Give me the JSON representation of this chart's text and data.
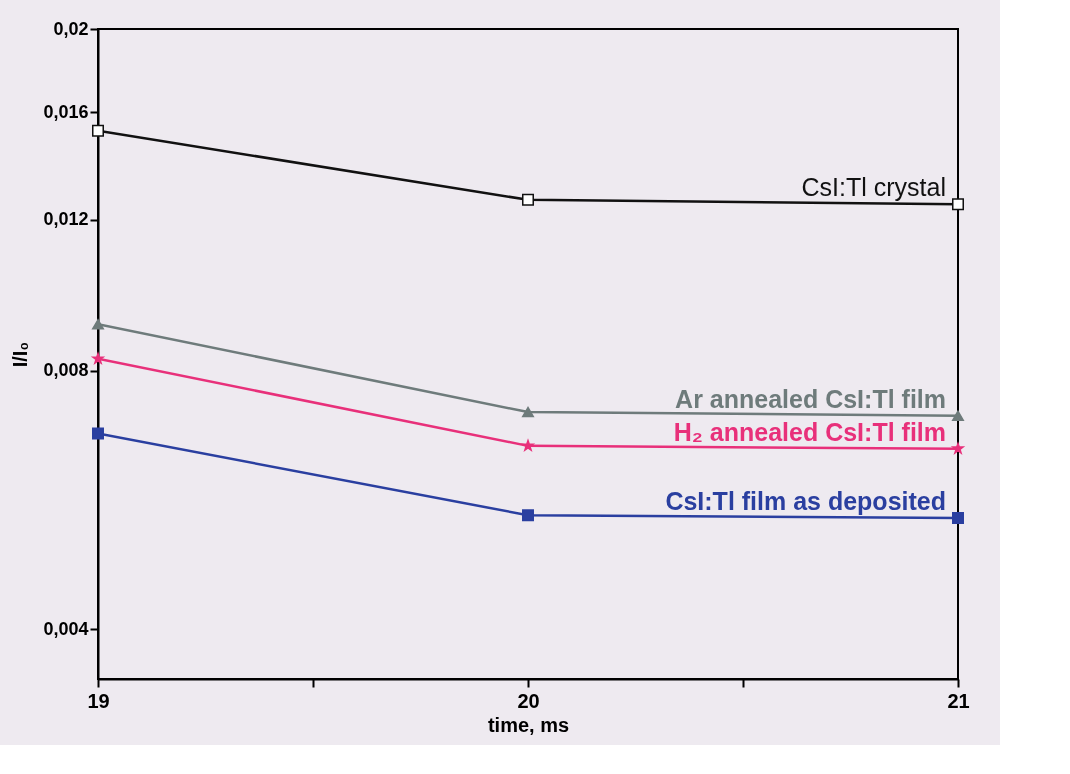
{
  "chart_data": {
    "type": "line",
    "xlabel": "time, ms",
    "ylabel": "I/I₀",
    "log": "y",
    "x": [
      19,
      20,
      21
    ],
    "xlim": [
      19,
      21
    ],
    "xticks": [
      19,
      {
        "value": 19.5,
        "label": null
      },
      20,
      {
        "value": 20.5,
        "label": null
      },
      21
    ],
    "ylim": [
      0.0035,
      0.02
    ],
    "yticks": [
      {
        "value": 0.004,
        "label": "0,004"
      },
      {
        "value": 0.008,
        "label": "0,008"
      },
      {
        "value": 0.012,
        "label": "0,012"
      },
      {
        "value": 0.016,
        "label": "0,016"
      },
      {
        "value": 0.02,
        "label": "0,02"
      }
    ],
    "grid": false,
    "legend": "right",
    "line_style": "solid",
    "series": [
      {
        "name": "CsI:Tl crystal",
        "color": "#111111",
        "marker": "square",
        "values": [
          0.01522,
          0.01265,
          0.0125
        ]
      },
      {
        "name": "Ar annealed CsI:Tl film",
        "color": "#6e7b7b",
        "marker": "triangle",
        "values": [
          0.00906,
          0.00716,
          0.00709
        ]
      },
      {
        "name": "H₂ annealed CsI:Tl film",
        "color": "#e8307a",
        "marker": "star",
        "values": [
          0.00826,
          0.00654,
          0.00649
        ]
      },
      {
        "name": "CsI:Tl film as deposited",
        "color": "#2a3fa0",
        "marker": "square",
        "values": [
          0.00676,
          0.00543,
          0.00539
        ]
      }
    ]
  }
}
